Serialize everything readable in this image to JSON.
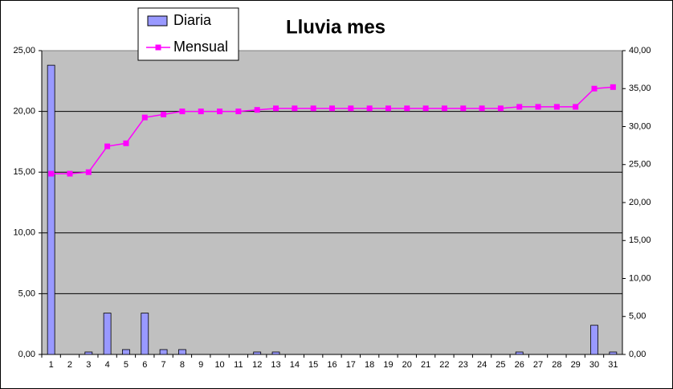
{
  "chart_data": {
    "type": "bar",
    "title": "Lluvia mes",
    "categories": [
      "1",
      "2",
      "3",
      "4",
      "5",
      "6",
      "7",
      "8",
      "9",
      "10",
      "11",
      "12",
      "13",
      "14",
      "15",
      "16",
      "17",
      "18",
      "19",
      "20",
      "21",
      "22",
      "23",
      "24",
      "25",
      "26",
      "27",
      "28",
      "29",
      "30",
      "31"
    ],
    "series": [
      {
        "name": "Diaria",
        "type": "bar",
        "color": "#9999ff",
        "values": [
          23.8,
          0,
          0.2,
          3.4,
          0.4,
          3.4,
          0.4,
          0.4,
          0,
          0,
          0,
          0.2,
          0.2,
          0,
          0,
          0,
          0,
          0,
          0,
          0,
          0,
          0,
          0,
          0,
          0,
          0.2,
          0,
          0,
          0,
          2.4,
          0.2
        ]
      },
      {
        "name": "Mensual",
        "type": "line",
        "axis": "y2",
        "color": "#ff00ff",
        "values": [
          23.8,
          23.8,
          24.0,
          27.4,
          27.8,
          31.2,
          31.6,
          32.0,
          32.0,
          32.0,
          32.0,
          32.2,
          32.4,
          32.4,
          32.4,
          32.4,
          32.4,
          32.4,
          32.4,
          32.4,
          32.4,
          32.4,
          32.4,
          32.4,
          32.4,
          32.6,
          32.6,
          32.6,
          32.6,
          35.0,
          35.2
        ]
      }
    ],
    "ylim": [
      0,
      25
    ],
    "yticks": [
      {
        "value": 0,
        "label": "0,00"
      },
      {
        "value": 5,
        "label": "5,00"
      },
      {
        "value": 10,
        "label": "10,00"
      },
      {
        "value": 15,
        "label": "15,00"
      },
      {
        "value": 20,
        "label": "20,00"
      },
      {
        "value": 25,
        "label": "25,00"
      }
    ],
    "y2lim": [
      0,
      40
    ],
    "y2ticks": [
      {
        "value": 0,
        "label": "0,00"
      },
      {
        "value": 5,
        "label": "5,00"
      },
      {
        "value": 10,
        "label": "10,00"
      },
      {
        "value": 15,
        "label": "15,00"
      },
      {
        "value": 20,
        "label": "20,00"
      },
      {
        "value": 25,
        "label": "25,00"
      },
      {
        "value": 30,
        "label": "30,00"
      },
      {
        "value": 35,
        "label": "35,00"
      },
      {
        "value": 40,
        "label": "40,00"
      }
    ],
    "grid": true
  }
}
